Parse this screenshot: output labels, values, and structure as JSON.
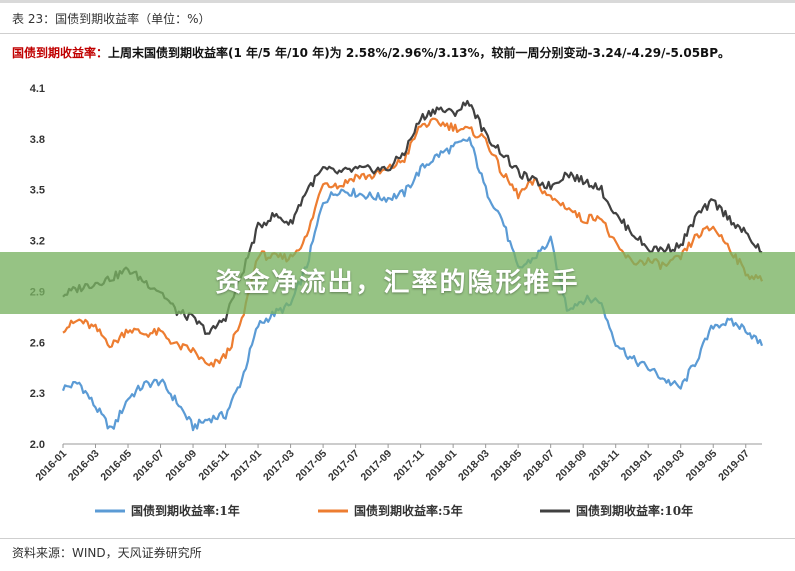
{
  "header": {
    "table_title": "表 23：国债到期收益率（单位：%）",
    "headline_label": "国债到期收益率：",
    "headline_text": "上周末国债到期收益率(1 年/5 年/10 年)为 2.58%/2.96%/3.13%，较前一周分别变动-3.24/-4.29/-5.05BP。"
  },
  "banner": {
    "text": "资金净流出，汇率的隐形推手"
  },
  "source": {
    "text": "资料来源：WIND，天风证券研究所"
  },
  "chart_data": {
    "type": "line",
    "title": "",
    "xlabel": "",
    "ylabel": "",
    "ylim": [
      2.0,
      4.1
    ],
    "yticks": [
      2.0,
      2.3,
      2.6,
      2.9,
      3.2,
      3.5,
      3.8,
      4.1
    ],
    "ytick_labels": [
      "2.0",
      "2.3",
      "2.6",
      "2.9",
      "3.2",
      "3.5",
      "3.8",
      "4.1"
    ],
    "xticks": [
      "2016-01",
      "2016-03",
      "2016-05",
      "2016-07",
      "2016-09",
      "2016-11",
      "2017-01",
      "2017-03",
      "2017-05",
      "2017-07",
      "2017-09",
      "2017-11",
      "2018-01",
      "2018-03",
      "2018-05",
      "2018-07",
      "2018-09",
      "2018-11",
      "2019-01",
      "2019-03",
      "2019-05",
      "2019-07"
    ],
    "x": [
      "2016-01",
      "2016-02",
      "2016-03",
      "2016-04",
      "2016-05",
      "2016-06",
      "2016-07",
      "2016-08",
      "2016-09",
      "2016-10",
      "2016-11",
      "2016-12",
      "2017-01",
      "2017-02",
      "2017-03",
      "2017-04",
      "2017-05",
      "2017-06",
      "2017-07",
      "2017-08",
      "2017-09",
      "2017-10",
      "2017-11",
      "2017-12",
      "2018-01",
      "2018-02",
      "2018-03",
      "2018-04",
      "2018-05",
      "2018-06",
      "2018-07",
      "2018-08",
      "2018-09",
      "2018-10",
      "2018-11",
      "2018-12",
      "2019-01",
      "2019-02",
      "2019-03",
      "2019-04",
      "2019-05",
      "2019-06",
      "2019-07",
      "2019-08"
    ],
    "legend_position": "bottom",
    "grid": false,
    "series": [
      {
        "name": "国债到期收益率:1年",
        "color": "#5b9bd5",
        "values": [
          2.33,
          2.36,
          2.22,
          2.08,
          2.27,
          2.35,
          2.37,
          2.25,
          2.1,
          2.15,
          2.17,
          2.38,
          2.7,
          2.77,
          2.82,
          3.05,
          3.43,
          3.5,
          3.48,
          3.46,
          3.45,
          3.48,
          3.62,
          3.7,
          3.75,
          3.8,
          3.5,
          3.33,
          3.03,
          3.1,
          3.2,
          2.8,
          2.85,
          2.85,
          2.6,
          2.5,
          2.45,
          2.38,
          2.33,
          2.5,
          2.7,
          2.72,
          2.68,
          2.58
        ]
      },
      {
        "name": "国债到期收益率:5年",
        "color": "#ed7d31",
        "values": [
          2.68,
          2.73,
          2.68,
          2.58,
          2.68,
          2.65,
          2.66,
          2.58,
          2.55,
          2.45,
          2.52,
          2.72,
          3.12,
          3.1,
          3.1,
          3.22,
          3.55,
          3.52,
          3.58,
          3.58,
          3.62,
          3.68,
          3.88,
          3.9,
          3.87,
          3.85,
          3.8,
          3.6,
          3.47,
          3.55,
          3.45,
          3.4,
          3.32,
          3.35,
          3.17,
          3.07,
          3.08,
          3.05,
          3.1,
          3.23,
          3.28,
          3.16,
          3.01,
          2.96
        ]
      },
      {
        "name": "国债到期收益率:10年",
        "color": "#404040",
        "values": [
          2.88,
          2.92,
          2.95,
          2.98,
          3.03,
          2.96,
          2.9,
          2.78,
          2.74,
          2.65,
          2.75,
          3.0,
          3.28,
          3.35,
          3.3,
          3.5,
          3.62,
          3.6,
          3.62,
          3.62,
          3.62,
          3.72,
          3.92,
          3.98,
          3.95,
          4.02,
          3.82,
          3.72,
          3.6,
          3.55,
          3.52,
          3.6,
          3.55,
          3.52,
          3.35,
          3.25,
          3.15,
          3.15,
          3.17,
          3.35,
          3.43,
          3.33,
          3.24,
          3.13
        ]
      }
    ]
  }
}
